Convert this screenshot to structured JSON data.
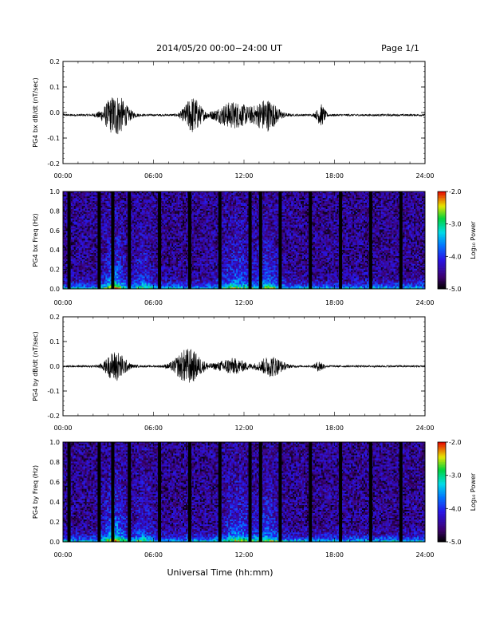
{
  "header": {
    "title": "2014/05/20  00:00−24:00 UT",
    "page": "Page 1/1"
  },
  "footer": {
    "xlabel": "Universal Time (hh:mm)"
  },
  "chart_data": [
    {
      "type": "line",
      "ylabel": "PG4 bx dB/dt (nT/sec)",
      "xlim": [
        0,
        24
      ],
      "ylim": [
        -0.2,
        0.2
      ],
      "yticks": [
        "0.2",
        "0.1",
        "0.0",
        "-0.1",
        "-0.2"
      ],
      "xticks": [
        "00:00",
        "06:00",
        "12:00",
        "18:00",
        "24:00"
      ],
      "baseline": -0.01,
      "activity": [
        {
          "center": 3.5,
          "width": 0.8,
          "amplitude": 0.08
        },
        {
          "center": 8.6,
          "width": 0.6,
          "amplitude": 0.07
        },
        {
          "center": 11.3,
          "width": 1.2,
          "amplitude": 0.05
        },
        {
          "center": 13.5,
          "width": 0.8,
          "amplitude": 0.06
        },
        {
          "center": 17.1,
          "width": 0.3,
          "amplitude": 0.04
        }
      ]
    },
    {
      "type": "heatmap",
      "ylabel": "PG4 bx Freq (Hz)",
      "xlim": [
        0,
        24
      ],
      "ylim": [
        0,
        1
      ],
      "yticks": [
        "1.0",
        "0.8",
        "0.6",
        "0.4",
        "0.2",
        "0.0"
      ],
      "xticks": [
        "00:00",
        "06:00",
        "12:00",
        "18:00",
        "24:00"
      ],
      "colorbar": {
        "label": "Log₁₀ Power",
        "range": [
          -5,
          -2
        ],
        "ticks": [
          "-2.0",
          "-3.0",
          "-4.0",
          "-5.0"
        ]
      },
      "gaps_hours": [
        0.4,
        2.4,
        3.3,
        4.4,
        6.4,
        8.4,
        10.4,
        12.4,
        13.1,
        14.4,
        16.4,
        18.4,
        20.4,
        22.4
      ],
      "activity": [
        {
          "center": 3.4,
          "width": 0.6,
          "amplitude": 2.0
        },
        {
          "center": 5.3,
          "width": 0.6,
          "amplitude": 1.0
        },
        {
          "center": 11.5,
          "width": 1.0,
          "amplitude": 1.3
        },
        {
          "center": 13.6,
          "width": 0.8,
          "amplitude": 1.3
        }
      ]
    },
    {
      "type": "line",
      "ylabel": "PG4 by dB/dt (nT/sec)",
      "xlim": [
        0,
        24
      ],
      "ylim": [
        -0.2,
        0.2
      ],
      "yticks": [
        "0.2",
        "0.1",
        "0.0",
        "-0.1",
        "-0.2"
      ],
      "xticks": [
        "00:00",
        "06:00",
        "12:00",
        "18:00",
        "24:00"
      ],
      "baseline": 0.0,
      "activity": [
        {
          "center": 3.5,
          "width": 0.7,
          "amplitude": 0.06
        },
        {
          "center": 8.3,
          "width": 0.9,
          "amplitude": 0.07
        },
        {
          "center": 11.2,
          "width": 1.0,
          "amplitude": 0.03
        },
        {
          "center": 13.8,
          "width": 0.8,
          "amplitude": 0.04
        },
        {
          "center": 17.0,
          "width": 0.3,
          "amplitude": 0.02
        }
      ]
    },
    {
      "type": "heatmap",
      "ylabel": "PG4 by Freq (Hz)",
      "xlim": [
        0,
        24
      ],
      "ylim": [
        0,
        1
      ],
      "yticks": [
        "1.0",
        "0.8",
        "0.6",
        "0.4",
        "0.2",
        "0.0"
      ],
      "xticks": [
        "00:00",
        "06:00",
        "12:00",
        "18:00",
        "24:00"
      ],
      "colorbar": {
        "label": "Log₁₀ Power",
        "range": [
          -5,
          -2
        ],
        "ticks": [
          "-2.0",
          "-3.0",
          "-4.0",
          "-5.0"
        ]
      },
      "gaps_hours": [
        0.4,
        2.4,
        3.3,
        4.4,
        6.4,
        8.4,
        10.4,
        12.4,
        13.1,
        14.4,
        16.4,
        18.4,
        20.4,
        22.4
      ],
      "activity": [
        {
          "center": 3.4,
          "width": 0.7,
          "amplitude": 2.0
        },
        {
          "center": 5.3,
          "width": 0.6,
          "amplitude": 1.0
        },
        {
          "center": 11.6,
          "width": 1.0,
          "amplitude": 1.4
        },
        {
          "center": 13.6,
          "width": 0.8,
          "amplitude": 1.2
        }
      ]
    }
  ]
}
